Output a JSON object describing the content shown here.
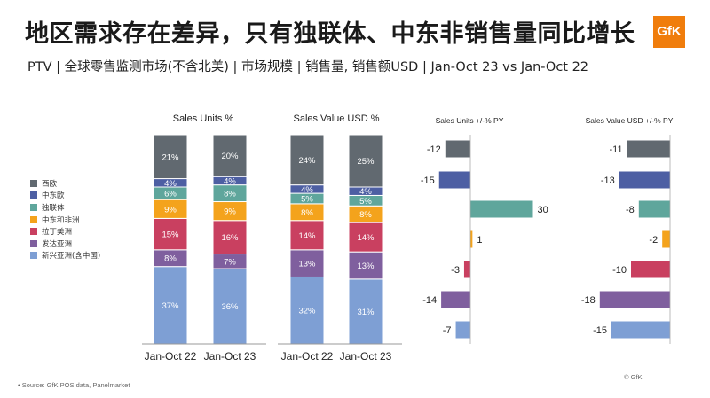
{
  "header": {
    "title": "地区需求存在差异，只有独联体、中东非销售量同比增长",
    "subtitle": "PTV | 全球零售监测市场(不含北美) | 市场规模 | 销售量, 销售额USD | Jan-Oct 23 vs Jan-Oct 22",
    "logo_text": "GfK"
  },
  "footer": {
    "source": "•  Source: GfK POS data, Panelmarket",
    "copyright": "© GfK"
  },
  "legend": [
    {
      "name": "西欧",
      "color": "#616970"
    },
    {
      "name": "中东欧",
      "color": "#4d5fa3"
    },
    {
      "name": "独联体",
      "color": "#5fa69c"
    },
    {
      "name": "中东和非洲",
      "color": "#f4a31c"
    },
    {
      "name": "拉丁美洲",
      "color": "#c94060"
    },
    {
      "name": "发达亚洲",
      "color": "#7f5f9e"
    },
    {
      "name": "新兴亚洲(含中国)",
      "color": "#7e9fd4"
    }
  ],
  "chart_data": [
    {
      "type": "bar",
      "stacked": true,
      "title": "Sales Units %",
      "categories": [
        "Jan-Oct 22",
        "Jan-Oct 23"
      ],
      "series": [
        {
          "name": "新兴亚洲(含中国)",
          "values": [
            37,
            36
          ]
        },
        {
          "name": "发达亚洲",
          "values": [
            8,
            7
          ]
        },
        {
          "name": "拉丁美洲",
          "values": [
            15,
            16
          ]
        },
        {
          "name": "中东和非洲",
          "values": [
            9,
            9
          ]
        },
        {
          "name": "独联体",
          "values": [
            6,
            8
          ]
        },
        {
          "name": "中东欧",
          "values": [
            4,
            4
          ]
        },
        {
          "name": "西欧",
          "values": [
            21,
            20
          ]
        }
      ],
      "data_labels": [
        [
          "37%",
          "8%",
          "15%",
          "9%",
          "6%",
          "4%",
          "21%"
        ],
        [
          "36%",
          "7%",
          "16%",
          "9%",
          "8%",
          "4%",
          "20%"
        ]
      ]
    },
    {
      "type": "bar",
      "stacked": true,
      "title": "Sales Value USD %",
      "categories": [
        "Jan-Oct 22",
        "Jan-Oct 23"
      ],
      "series": [
        {
          "name": "新兴亚洲(含中国)",
          "values": [
            32,
            31
          ]
        },
        {
          "name": "发达亚洲",
          "values": [
            13,
            13
          ]
        },
        {
          "name": "拉丁美洲",
          "values": [
            14,
            14
          ]
        },
        {
          "name": "中东和非洲",
          "values": [
            8,
            8
          ]
        },
        {
          "name": "独联体",
          "values": [
            5,
            5
          ]
        },
        {
          "name": "中东欧",
          "values": [
            4,
            4
          ]
        },
        {
          "name": "西欧",
          "values": [
            24,
            25
          ]
        }
      ],
      "data_labels": [
        [
          "32%",
          "13%",
          "14%",
          "8%",
          "5%",
          "4%",
          "24%"
        ],
        [
          "31%",
          "13%",
          "14%",
          "8%",
          "5%",
          "4%",
          "25%"
        ]
      ]
    },
    {
      "type": "bar",
      "orientation": "horizontal",
      "title": "Sales Units +/-% PY",
      "categories": [
        "西欧",
        "中东欧",
        "独联体",
        "中东和非洲",
        "拉丁美洲",
        "发达亚洲",
        "新兴亚洲(含中国)"
      ],
      "values": [
        -12,
        -15,
        30,
        1,
        -3,
        -14,
        -7
      ]
    },
    {
      "type": "bar",
      "orientation": "horizontal",
      "title": "Sales Value USD +/-% PY",
      "categories": [
        "西欧",
        "中东欧",
        "独联体",
        "中东和非洲",
        "拉丁美洲",
        "发达亚洲",
        "新兴亚洲(含中国)"
      ],
      "values": [
        -11,
        -13,
        -8,
        -2,
        -10,
        -18,
        -15
      ]
    }
  ]
}
